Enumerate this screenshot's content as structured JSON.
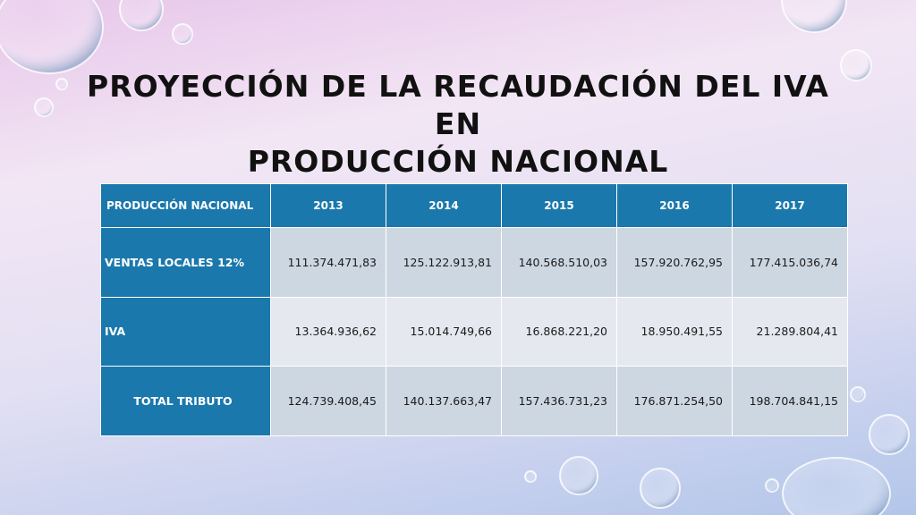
{
  "slide": {
    "title_line1": "PROYECCIÓN DE LA RECAUDACIÓN DEL IVA EN",
    "title_line2": "PRODUCCIÓN NACIONAL"
  },
  "table": {
    "corner_header": "PRODUCCIÓN NACIONAL",
    "years": [
      "2013",
      "2014",
      "2015",
      "2016",
      "2017"
    ],
    "rows": [
      {
        "label": "VENTAS LOCALES 12%",
        "values": [
          "111.374.471,83",
          "125.122.913,81",
          "140.568.510,03",
          "157.920.762,95",
          "177.415.036,74"
        ]
      },
      {
        "label": "IVA",
        "values": [
          "13.364.936,62",
          "15.014.749,66",
          "16.868.221,20",
          "18.950.491,55",
          "21.289.804,41"
        ]
      },
      {
        "label": "TOTAL TRIBUTO",
        "values": [
          "124.739.408,45",
          "140.137.663,47",
          "157.436.731,23",
          "176.871.254,50",
          "198.704.841,15"
        ]
      }
    ]
  },
  "colors": {
    "header_blue": "#1b78ac",
    "cell_dark": "#cdd7e2",
    "cell_light": "#e5e9ef"
  }
}
